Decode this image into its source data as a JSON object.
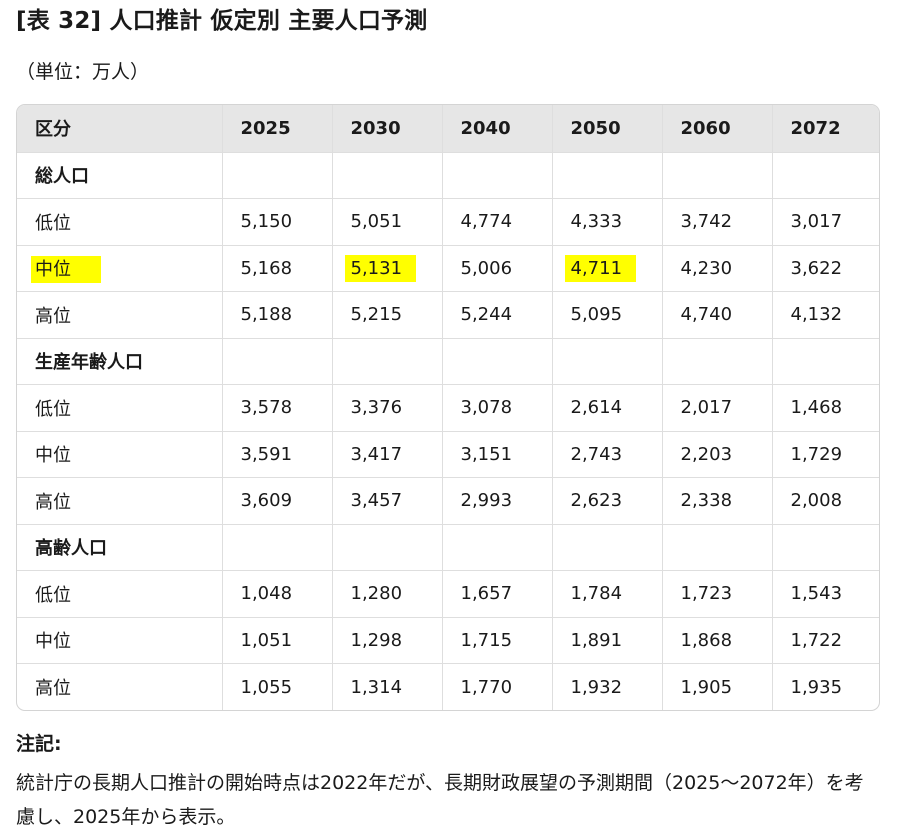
{
  "title": "[表 32] 人口推計 仮定別 主要人口予測",
  "unit": "（単位：万人）",
  "table": {
    "headers": [
      "区分",
      "2025",
      "2030",
      "2040",
      "2050",
      "2060",
      "2072"
    ],
    "rows": [
      {
        "type": "group",
        "cells": [
          "総人口",
          "",
          "",
          "",
          "",
          "",
          ""
        ]
      },
      {
        "type": "data",
        "cells": [
          "低位",
          "5,150",
          "5,051",
          "4,774",
          "4,333",
          "3,742",
          "3,017"
        ]
      },
      {
        "type": "data",
        "cells": [
          "中位",
          "5,168",
          "5,131",
          "5,006",
          "4,711",
          "4,230",
          "3,622"
        ],
        "highlight": [
          0,
          2,
          4
        ]
      },
      {
        "type": "data",
        "cells": [
          "高位",
          "5,188",
          "5,215",
          "5,244",
          "5,095",
          "4,740",
          "4,132"
        ]
      },
      {
        "type": "group",
        "cells": [
          "生産年齢人口",
          "",
          "",
          "",
          "",
          "",
          ""
        ]
      },
      {
        "type": "data",
        "cells": [
          "低位",
          "3,578",
          "3,376",
          "3,078",
          "2,614",
          "2,017",
          "1,468"
        ]
      },
      {
        "type": "data",
        "cells": [
          "中位",
          "3,591",
          "3,417",
          "3,151",
          "2,743",
          "2,203",
          "1,729"
        ]
      },
      {
        "type": "data",
        "cells": [
          "高位",
          "3,609",
          "3,457",
          "2,993",
          "2,623",
          "2,338",
          "2,008"
        ]
      },
      {
        "type": "group",
        "cells": [
          "高齢人口",
          "",
          "",
          "",
          "",
          "",
          ""
        ]
      },
      {
        "type": "data",
        "cells": [
          "低位",
          "1,048",
          "1,280",
          "1,657",
          "1,784",
          "1,723",
          "1,543"
        ]
      },
      {
        "type": "data",
        "cells": [
          "中位",
          "1,051",
          "1,298",
          "1,715",
          "1,891",
          "1,868",
          "1,722"
        ]
      },
      {
        "type": "data",
        "cells": [
          "高位",
          "1,055",
          "1,314",
          "1,770",
          "1,932",
          "1,905",
          "1,935"
        ]
      }
    ]
  },
  "highlight_color": "#ffff00",
  "notes": {
    "heading": "注記:",
    "body": "統計庁の長期人口推計の開始時点は2022年だが、長期財政展望の予測期間（2025～2072年）を考慮し、2025年から表示。"
  }
}
